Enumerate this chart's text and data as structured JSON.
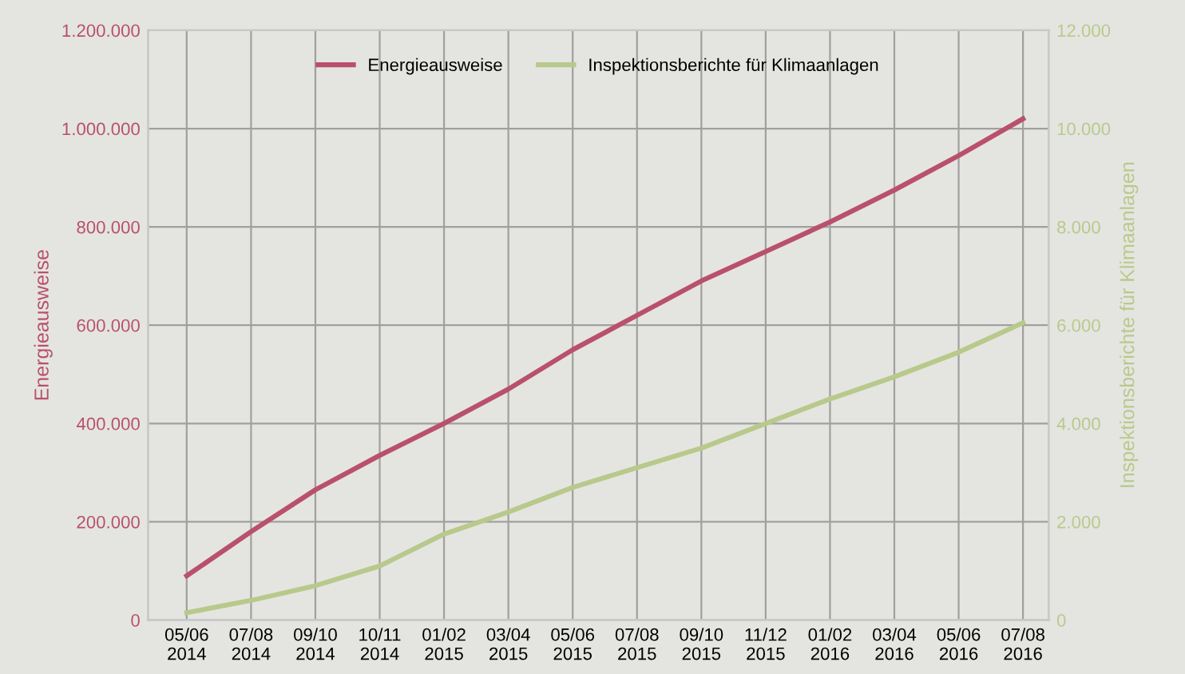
{
  "chart_data": {
    "type": "line",
    "ylabel": "Energieausweise",
    "y2label": "Inspektionsberichte für Klimaanlagen",
    "categories": [
      "05/06\n2014",
      "07/08\n2014",
      "09/10\n2014",
      "10/11\n2014",
      "01/02\n2015",
      "03/04\n2015",
      "05/06\n2015",
      "07/08\n2015",
      "09/10\n2015",
      "11/12\n2015",
      "01/02\n2016",
      "03/04\n2016",
      "05/06\n2016",
      "07/08\n2016"
    ],
    "series": [
      {
        "name": "Energieausweise",
        "color": "#b9506c",
        "values": [
          90000,
          180000,
          265000,
          335000,
          400000,
          470000,
          550000,
          620000,
          690000,
          750000,
          810000,
          875000,
          945000,
          1020000
        ]
      },
      {
        "name": "Inspektionsberichte für Klimaanlagen",
        "color": "#b8c98c",
        "axis": "y2",
        "values": [
          150,
          400,
          700,
          1100,
          1750,
          2200,
          2700,
          3100,
          3500,
          4000,
          4500,
          4950,
          5450,
          6050
        ]
      }
    ],
    "ylim": [
      0,
      1200000
    ],
    "yticks": [
      0,
      {
        "value": 200000,
        "label": "200.000"
      },
      {
        "value": 400000,
        "label": "400.000"
      },
      {
        "value": 600000,
        "label": "600.000"
      },
      {
        "value": 800000,
        "label": "800.000"
      },
      {
        "value": 1000000,
        "label": "1.000.000"
      },
      {
        "value": 1200000,
        "label": "1.200.000"
      }
    ],
    "y2lim": [
      0,
      12000
    ],
    "y2ticks": [
      0,
      {
        "value": 2000,
        "label": "2.000"
      },
      {
        "value": 4000,
        "label": "4.000"
      },
      {
        "value": 6000,
        "label": "6.000"
      },
      {
        "value": 8000,
        "label": "8.000"
      },
      {
        "value": 10000,
        "label": "10.000"
      },
      {
        "value": 12000,
        "label": "12.000"
      }
    ],
    "grid": true,
    "legend": "top",
    "marker": "none",
    "line_style": "solid"
  }
}
